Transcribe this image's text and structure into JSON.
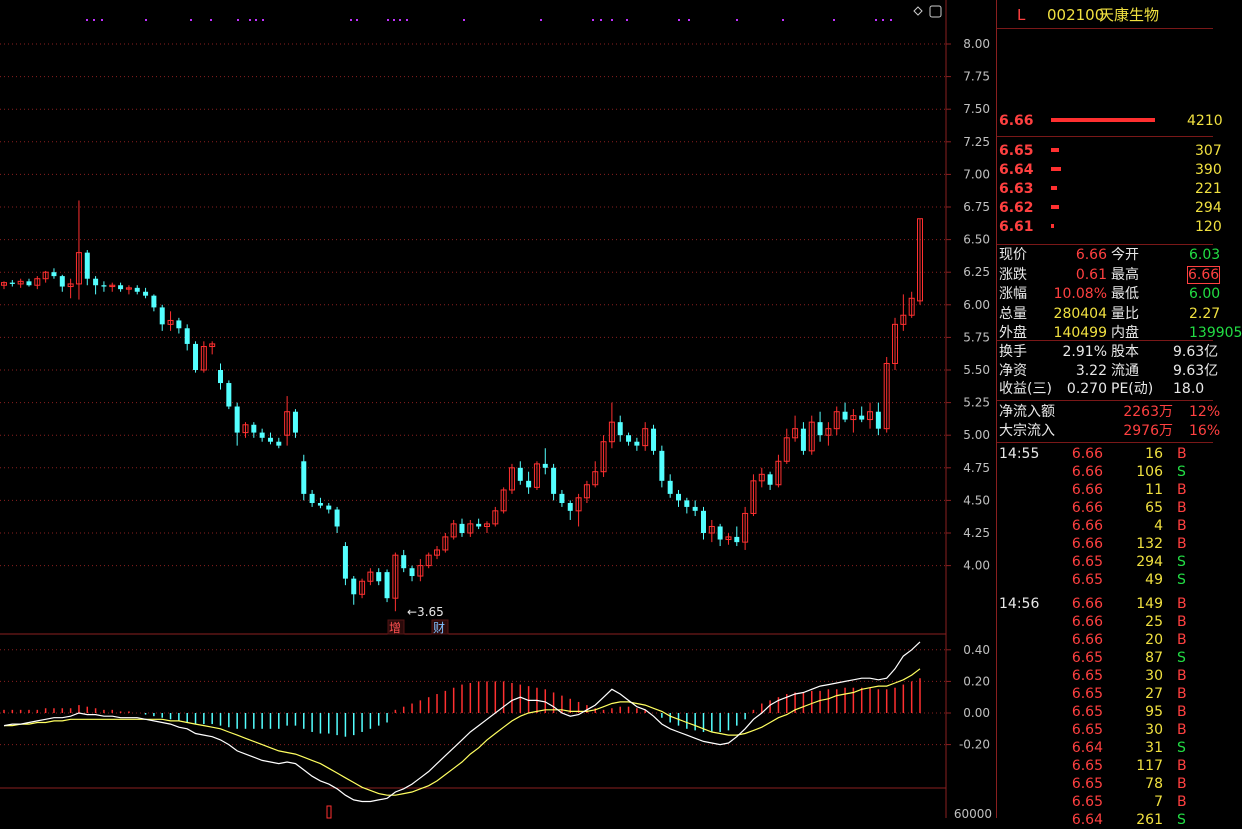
{
  "stock": {
    "code_tag": "L",
    "code": "002100",
    "name": "天康生物"
  },
  "price_axis": {
    "ticks": [
      "8.00",
      "7.75",
      "7.50",
      "7.25",
      "7.00",
      "6.75",
      "6.50",
      "6.25",
      "6.00",
      "5.75",
      "5.50",
      "5.25",
      "5.00",
      "4.75",
      "4.50",
      "4.25",
      "4.00"
    ]
  },
  "macd_axis": {
    "ticks": [
      "0.40",
      "0.20",
      "0.00",
      "-0.20"
    ]
  },
  "vol_axis": {
    "ticks": [
      "60000"
    ]
  },
  "low_marker": "←3.65",
  "event_tags": [
    "增",
    "财"
  ],
  "colors": {
    "up": "#ff3030",
    "down": "#54ffff",
    "bg": "#000000",
    "grid": "#8a1f1f",
    "axis_text": "#c0c0c0",
    "ma": "#ffffff",
    "signal": "#ffff60"
  },
  "order_book": {
    "sell1": {
      "price": "6.66",
      "vol": "4210"
    },
    "buys": [
      {
        "price": "6.65",
        "vol": "307"
      },
      {
        "price": "6.64",
        "vol": "390"
      },
      {
        "price": "6.63",
        "vol": "221"
      },
      {
        "price": "6.62",
        "vol": "294"
      },
      {
        "price": "6.61",
        "vol": "120"
      }
    ]
  },
  "quote": {
    "rows": [
      {
        "l1": "现价",
        "v1": "6.66",
        "l2": "今开",
        "v2": "6.03"
      },
      {
        "l1": "涨跌",
        "v1": "0.61",
        "l2": "最高",
        "v2": "6.66"
      },
      {
        "l1": "涨幅",
        "v1": "10.08%",
        "l2": "最低",
        "v2": "6.00"
      },
      {
        "l1": "总量",
        "v1": "280404",
        "l2": "量比",
        "v2": "2.27"
      },
      {
        "l1": "外盘",
        "v1": "140499",
        "l2": "内盘",
        "v2": "139905"
      }
    ],
    "rows2": [
      {
        "l1": "换手",
        "v1": "2.91%",
        "l2": "股本",
        "v2": "9.63亿"
      },
      {
        "l1": "净资",
        "v1": "3.22",
        "l2": "流通",
        "v2": "9.63亿"
      },
      {
        "l1": "收益(三)",
        "v1": "0.270",
        "l2": "PE(动)",
        "v2": "18.0"
      }
    ],
    "rows3": [
      {
        "l1": "净流入额",
        "v1": "2263万",
        "v2": "12%"
      },
      {
        "l1": "大宗流入",
        "v1": "2976万",
        "v2": "16%"
      }
    ]
  },
  "ticks": [
    {
      "time": "14:55",
      "price": "6.66",
      "vol": "16",
      "side": "B"
    },
    {
      "time": "",
      "price": "6.66",
      "vol": "106",
      "side": "S"
    },
    {
      "time": "",
      "price": "6.66",
      "vol": "11",
      "side": "B"
    },
    {
      "time": "",
      "price": "6.66",
      "vol": "65",
      "side": "B"
    },
    {
      "time": "",
      "price": "6.66",
      "vol": "4",
      "side": "B"
    },
    {
      "time": "",
      "price": "6.66",
      "vol": "132",
      "side": "B"
    },
    {
      "time": "",
      "price": "6.65",
      "vol": "294",
      "side": "S"
    },
    {
      "time": "",
      "price": "6.65",
      "vol": "49",
      "side": "S"
    },
    {
      "time": "14:56",
      "price": "6.66",
      "vol": "149",
      "side": "B"
    },
    {
      "time": "",
      "price": "6.66",
      "vol": "25",
      "side": "B"
    },
    {
      "time": "",
      "price": "6.66",
      "vol": "20",
      "side": "B"
    },
    {
      "time": "",
      "price": "6.65",
      "vol": "87",
      "side": "S"
    },
    {
      "time": "",
      "price": "6.65",
      "vol": "30",
      "side": "B"
    },
    {
      "time": "",
      "price": "6.65",
      "vol": "27",
      "side": "B"
    },
    {
      "time": "",
      "price": "6.65",
      "vol": "95",
      "side": "B"
    },
    {
      "time": "",
      "price": "6.65",
      "vol": "30",
      "side": "B"
    },
    {
      "time": "",
      "price": "6.64",
      "vol": "31",
      "side": "S"
    },
    {
      "time": "",
      "price": "6.65",
      "vol": "117",
      "side": "B"
    },
    {
      "time": "",
      "price": "6.65",
      "vol": "78",
      "side": "B"
    },
    {
      "time": "",
      "price": "6.65",
      "vol": "7",
      "side": "B"
    },
    {
      "time": "",
      "price": "6.64",
      "vol": "261",
      "side": "S"
    }
  ],
  "chart_data": {
    "type": "candlestick",
    "ylim": [
      3.6,
      8.1
    ],
    "candles": [
      [
        6.15,
        6.18,
        6.12,
        6.17
      ],
      [
        6.17,
        6.19,
        6.14,
        6.16
      ],
      [
        6.16,
        6.2,
        6.13,
        6.18
      ],
      [
        6.18,
        6.2,
        6.14,
        6.15
      ],
      [
        6.15,
        6.22,
        6.12,
        6.2
      ],
      [
        6.2,
        6.26,
        6.17,
        6.25
      ],
      [
        6.25,
        6.28,
        6.2,
        6.22
      ],
      [
        6.22,
        6.23,
        6.1,
        6.14
      ],
      [
        6.14,
        6.2,
        6.05,
        6.16
      ],
      [
        6.16,
        6.8,
        6.04,
        6.4
      ],
      [
        6.4,
        6.42,
        6.15,
        6.2
      ],
      [
        6.2,
        6.22,
        6.08,
        6.15
      ],
      [
        6.15,
        6.18,
        6.1,
        6.14
      ],
      [
        6.14,
        6.17,
        6.1,
        6.15
      ],
      [
        6.15,
        6.17,
        6.1,
        6.12
      ],
      [
        6.12,
        6.15,
        6.08,
        6.13
      ],
      [
        6.13,
        6.15,
        6.08,
        6.1
      ],
      [
        6.1,
        6.13,
        6.05,
        6.07
      ],
      [
        6.07,
        6.08,
        5.95,
        5.98
      ],
      [
        5.98,
        6.0,
        5.8,
        5.85
      ],
      [
        5.85,
        5.95,
        5.8,
        5.88
      ],
      [
        5.88,
        5.9,
        5.78,
        5.82
      ],
      [
        5.82,
        5.85,
        5.65,
        5.7
      ],
      [
        5.7,
        5.72,
        5.48,
        5.5
      ],
      [
        5.5,
        5.72,
        5.48,
        5.68
      ],
      [
        5.68,
        5.72,
        5.62,
        5.7
      ],
      [
        5.5,
        5.55,
        5.35,
        5.4
      ],
      [
        5.4,
        5.42,
        5.2,
        5.22
      ],
      [
        5.22,
        5.25,
        4.92,
        5.02
      ],
      [
        5.02,
        5.1,
        4.98,
        5.08
      ],
      [
        5.08,
        5.1,
        4.98,
        5.02
      ],
      [
        5.02,
        5.05,
        4.95,
        4.98
      ],
      [
        4.98,
        5.02,
        4.93,
        4.95
      ],
      [
        4.95,
        4.98,
        4.9,
        4.92
      ],
      [
        5.0,
        5.3,
        4.92,
        5.18
      ],
      [
        5.18,
        5.2,
        4.98,
        5.02
      ],
      [
        4.8,
        4.85,
        4.5,
        4.55
      ],
      [
        4.55,
        4.58,
        4.45,
        4.48
      ],
      [
        4.48,
        4.52,
        4.44,
        4.46
      ],
      [
        4.46,
        4.48,
        4.4,
        4.43
      ],
      [
        4.43,
        4.45,
        4.25,
        4.3
      ],
      [
        4.15,
        4.18,
        3.85,
        3.9
      ],
      [
        3.9,
        3.92,
        3.7,
        3.78
      ],
      [
        3.78,
        3.9,
        3.75,
        3.88
      ],
      [
        3.88,
        3.98,
        3.85,
        3.95
      ],
      [
        3.95,
        3.98,
        3.85,
        3.88
      ],
      [
        3.95,
        3.97,
        3.72,
        3.75
      ],
      [
        3.75,
        4.1,
        3.65,
        4.08
      ],
      [
        4.08,
        4.12,
        3.95,
        3.98
      ],
      [
        3.98,
        4.0,
        3.88,
        3.92
      ],
      [
        3.92,
        4.05,
        3.88,
        4.0
      ],
      [
        4.0,
        4.1,
        3.98,
        4.08
      ],
      [
        4.08,
        4.15,
        4.05,
        4.12
      ],
      [
        4.12,
        4.25,
        4.1,
        4.22
      ],
      [
        4.22,
        4.35,
        4.2,
        4.32
      ],
      [
        4.32,
        4.36,
        4.22,
        4.25
      ],
      [
        4.25,
        4.35,
        4.22,
        4.32
      ],
      [
        4.32,
        4.36,
        4.28,
        4.3
      ],
      [
        4.3,
        4.34,
        4.25,
        4.32
      ],
      [
        4.32,
        4.45,
        4.3,
        4.42
      ],
      [
        4.42,
        4.6,
        4.4,
        4.58
      ],
      [
        4.58,
        4.78,
        4.55,
        4.75
      ],
      [
        4.75,
        4.8,
        4.62,
        4.65
      ],
      [
        4.65,
        4.72,
        4.55,
        4.6
      ],
      [
        4.6,
        4.8,
        4.58,
        4.78
      ],
      [
        4.78,
        4.9,
        4.7,
        4.75
      ],
      [
        4.75,
        4.78,
        4.5,
        4.55
      ],
      [
        4.55,
        4.58,
        4.45,
        4.48
      ],
      [
        4.48,
        4.5,
        4.35,
        4.42
      ],
      [
        4.42,
        4.55,
        4.3,
        4.52
      ],
      [
        4.52,
        4.65,
        4.48,
        4.62
      ],
      [
        4.62,
        4.8,
        4.6,
        4.72
      ],
      [
        4.72,
        5.0,
        4.68,
        4.95
      ],
      [
        4.95,
        5.25,
        4.9,
        5.1
      ],
      [
        5.1,
        5.15,
        4.95,
        5.0
      ],
      [
        5.0,
        5.02,
        4.92,
        4.95
      ],
      [
        4.95,
        4.98,
        4.88,
        4.92
      ],
      [
        4.92,
        5.1,
        4.88,
        5.05
      ],
      [
        5.05,
        5.08,
        4.85,
        4.88
      ],
      [
        4.88,
        4.92,
        4.6,
        4.65
      ],
      [
        4.65,
        4.7,
        4.52,
        4.55
      ],
      [
        4.55,
        4.58,
        4.45,
        4.5
      ],
      [
        4.5,
        4.52,
        4.4,
        4.45
      ],
      [
        4.45,
        4.5,
        4.38,
        4.42
      ],
      [
        4.42,
        4.45,
        4.2,
        4.25
      ],
      [
        4.25,
        4.35,
        4.18,
        4.3
      ],
      [
        4.3,
        4.32,
        4.15,
        4.2
      ],
      [
        4.2,
        4.25,
        4.16,
        4.22
      ],
      [
        4.22,
        4.3,
        4.15,
        4.18
      ],
      [
        4.18,
        4.45,
        4.12,
        4.4
      ],
      [
        4.4,
        4.7,
        4.38,
        4.65
      ],
      [
        4.65,
        4.75,
        4.6,
        4.7
      ],
      [
        4.7,
        4.72,
        4.58,
        4.62
      ],
      [
        4.62,
        4.85,
        4.6,
        4.8
      ],
      [
        4.8,
        5.05,
        4.78,
        4.98
      ],
      [
        4.98,
        5.15,
        4.95,
        5.05
      ],
      [
        5.05,
        5.1,
        4.85,
        4.88
      ],
      [
        4.88,
        5.15,
        4.85,
        5.1
      ],
      [
        5.1,
        5.18,
        4.95,
        5.0
      ],
      [
        5.0,
        5.1,
        4.92,
        5.05
      ],
      [
        5.05,
        5.22,
        5.0,
        5.18
      ],
      [
        5.18,
        5.25,
        5.1,
        5.12
      ],
      [
        5.12,
        5.2,
        5.02,
        5.15
      ],
      [
        5.15,
        5.22,
        5.1,
        5.12
      ],
      [
        5.12,
        5.25,
        5.05,
        5.18
      ],
      [
        5.18,
        5.25,
        5.0,
        5.05
      ],
      [
        5.05,
        5.6,
        5.02,
        5.55
      ],
      [
        5.55,
        5.9,
        5.5,
        5.85
      ],
      [
        5.85,
        6.08,
        5.8,
        5.92
      ],
      [
        5.92,
        6.1,
        5.9,
        6.05
      ],
      [
        6.03,
        6.66,
        6.0,
        6.66
      ]
    ],
    "macd_hist": [
      0.02,
      0.02,
      0.02,
      0.02,
      0.02,
      0.03,
      0.03,
      0.03,
      0.03,
      0.05,
      0.04,
      0.03,
      0.02,
      0.02,
      0.01,
      0.01,
      0.0,
      -0.01,
      -0.02,
      -0.03,
      -0.04,
      -0.05,
      -0.06,
      -0.07,
      -0.07,
      -0.07,
      -0.08,
      -0.09,
      -0.1,
      -0.1,
      -0.1,
      -0.1,
      -0.1,
      -0.1,
      -0.08,
      -0.08,
      -0.1,
      -0.12,
      -0.13,
      -0.13,
      -0.14,
      -0.15,
      -0.14,
      -0.12,
      -0.1,
      -0.08,
      -0.06,
      0.02,
      0.04,
      0.06,
      0.08,
      0.1,
      0.12,
      0.14,
      0.16,
      0.18,
      0.19,
      0.2,
      0.2,
      0.2,
      0.2,
      0.19,
      0.18,
      0.17,
      0.16,
      0.15,
      0.13,
      0.11,
      0.09,
      0.07,
      0.05,
      0.03,
      0.02,
      0.03,
      0.04,
      0.04,
      0.03,
      0.02,
      0.0,
      -0.03,
      -0.06,
      -0.08,
      -0.1,
      -0.11,
      -0.12,
      -0.12,
      -0.12,
      -0.11,
      -0.08,
      -0.04,
      0.02,
      0.06,
      0.08,
      0.1,
      0.12,
      0.13,
      0.13,
      0.14,
      0.14,
      0.15,
      0.15,
      0.16,
      0.16,
      0.16,
      0.16,
      0.15,
      0.15,
      0.16,
      0.18,
      0.2,
      0.22
    ],
    "dif": [
      -0.08,
      -0.07,
      -0.07,
      -0.06,
      -0.05,
      -0.04,
      -0.03,
      -0.03,
      -0.02,
      0.0,
      -0.01,
      -0.01,
      -0.02,
      -0.02,
      -0.03,
      -0.03,
      -0.03,
      -0.04,
      -0.05,
      -0.06,
      -0.07,
      -0.09,
      -0.1,
      -0.13,
      -0.14,
      -0.15,
      -0.17,
      -0.2,
      -0.24,
      -0.26,
      -0.28,
      -0.3,
      -0.31,
      -0.32,
      -0.31,
      -0.32,
      -0.36,
      -0.4,
      -0.43,
      -0.45,
      -0.48,
      -0.52,
      -0.55,
      -0.56,
      -0.56,
      -0.55,
      -0.54,
      -0.5,
      -0.48,
      -0.45,
      -0.41,
      -0.37,
      -0.32,
      -0.27,
      -0.22,
      -0.17,
      -0.12,
      -0.08,
      -0.04,
      0.0,
      0.04,
      0.08,
      0.1,
      0.08,
      0.08,
      0.07,
      0.04,
      0.0,
      -0.02,
      -0.01,
      0.02,
      0.05,
      0.1,
      0.15,
      0.12,
      0.08,
      0.04,
      0.02,
      -0.02,
      -0.07,
      -0.1,
      -0.12,
      -0.14,
      -0.16,
      -0.18,
      -0.19,
      -0.2,
      -0.19,
      -0.15,
      -0.1,
      -0.04,
      0.0,
      0.05,
      0.08,
      0.1,
      0.12,
      0.13,
      0.15,
      0.17,
      0.18,
      0.19,
      0.2,
      0.21,
      0.22,
      0.22,
      0.21,
      0.22,
      0.28,
      0.36,
      0.4,
      0.45
    ],
    "dea": [
      -0.08,
      -0.08,
      -0.07,
      -0.07,
      -0.06,
      -0.06,
      -0.05,
      -0.05,
      -0.04,
      -0.04,
      -0.04,
      -0.04,
      -0.04,
      -0.04,
      -0.04,
      -0.04,
      -0.04,
      -0.04,
      -0.04,
      -0.04,
      -0.05,
      -0.05,
      -0.06,
      -0.07,
      -0.08,
      -0.09,
      -0.1,
      -0.12,
      -0.14,
      -0.16,
      -0.18,
      -0.2,
      -0.22,
      -0.24,
      -0.25,
      -0.26,
      -0.28,
      -0.3,
      -0.32,
      -0.35,
      -0.38,
      -0.41,
      -0.44,
      -0.47,
      -0.49,
      -0.51,
      -0.52,
      -0.52,
      -0.51,
      -0.5,
      -0.48,
      -0.46,
      -0.43,
      -0.39,
      -0.35,
      -0.31,
      -0.26,
      -0.22,
      -0.17,
      -0.13,
      -0.09,
      -0.05,
      -0.02,
      0.0,
      0.01,
      0.02,
      0.02,
      0.02,
      0.01,
      0.01,
      0.01,
      0.02,
      0.04,
      0.06,
      0.07,
      0.07,
      0.06,
      0.05,
      0.03,
      0.01,
      -0.02,
      -0.04,
      -0.06,
      -0.08,
      -0.1,
      -0.12,
      -0.13,
      -0.14,
      -0.14,
      -0.13,
      -0.11,
      -0.09,
      -0.06,
      -0.03,
      -0.01,
      0.02,
      0.04,
      0.06,
      0.08,
      0.09,
      0.11,
      0.12,
      0.13,
      0.15,
      0.16,
      0.17,
      0.17,
      0.19,
      0.21,
      0.24,
      0.28
    ]
  }
}
